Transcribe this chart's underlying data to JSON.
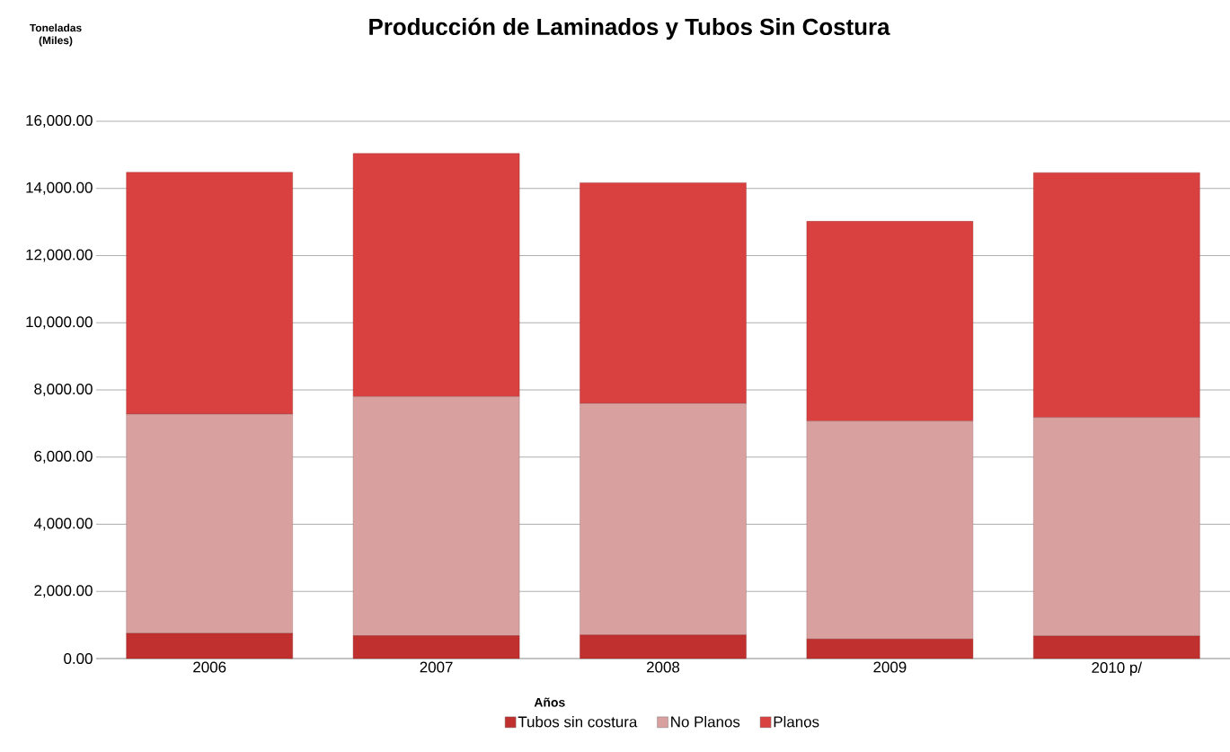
{
  "chart_data": {
    "type": "bar",
    "title": "Producción de Laminados y Tubos Sin Costura",
    "annotations": [
      "Toneladas (Miles)"
    ],
    "xlabel": "Años",
    "categories": [
      "2006",
      "2007",
      "2008",
      "2009",
      "2010 p/"
    ],
    "stacked": true,
    "series": [
      {
        "name": "Tubos sin costura",
        "color": "#c0302e",
        "values": [
          750,
          680,
          700,
          580,
          670
        ]
      },
      {
        "name": "No Planos",
        "color": "#d9a0a0",
        "values": [
          6530,
          7120,
          6900,
          6490,
          6510
        ]
      },
      {
        "name": "Planos",
        "color": "#d94040",
        "values": [
          7200,
          7240,
          6570,
          5950,
          7290
        ]
      }
    ],
    "ylim": [
      0,
      16000
    ],
    "yticks": [
      {
        "value": 0,
        "label": "0.00"
      },
      {
        "value": 2000,
        "label": "2,000.00"
      },
      {
        "value": 4000,
        "label": "4,000.00"
      },
      {
        "value": 6000,
        "label": "6,000.00"
      },
      {
        "value": 8000,
        "label": "8,000.00"
      },
      {
        "value": 10000,
        "label": "10,000.00"
      },
      {
        "value": 12000,
        "label": "12,000.00"
      },
      {
        "value": 14000,
        "label": "14,000.00"
      },
      {
        "value": 16000,
        "label": "16,000.00"
      }
    ],
    "grid": "y",
    "legend": "bottom"
  }
}
